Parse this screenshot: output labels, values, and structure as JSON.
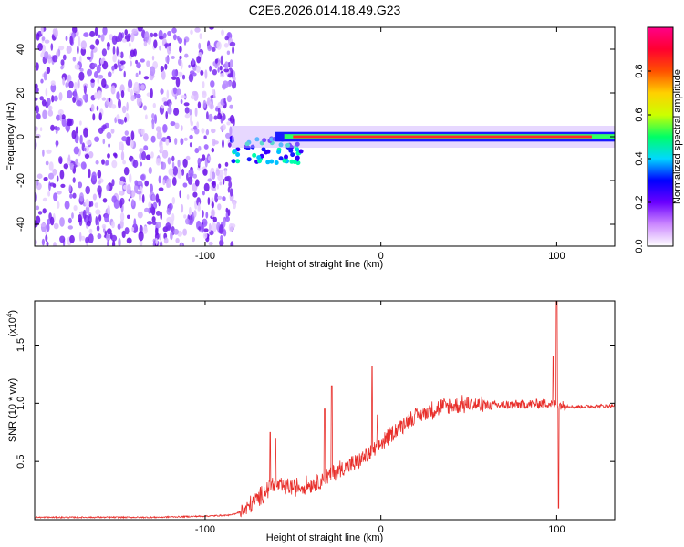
{
  "title": "C2E6.2026.014.18.49.G23",
  "chart_data": [
    {
      "type": "heatmap",
      "name": "spectrogram",
      "xlabel": "Height of straight line (km)",
      "ylabel": "Frequency (Hz)",
      "xlim": [
        -197,
        133
      ],
      "ylim": [
        -50,
        50
      ],
      "xticks": [
        -100,
        0,
        100
      ],
      "yticks": [
        -40,
        -20,
        0,
        20,
        40
      ],
      "ridge_frequency_hz": 0,
      "noise_region_x": [
        -197,
        -83
      ],
      "colorbar": {
        "label": "Normalized spectral amplitude",
        "range": [
          0,
          1
        ],
        "ticks": [
          "0.0",
          "0.2",
          "0.4",
          "0.6",
          "0.8"
        ],
        "tick_values": [
          0,
          0.2,
          0.4,
          0.6,
          0.8
        ],
        "colors": [
          "#ffffff",
          "#cc88ff",
          "#6a00ff",
          "#0000ff",
          "#00d8ff",
          "#00ff66",
          "#ccff00",
          "#ffd000",
          "#ff5000",
          "#ff0030",
          "#ff0088"
        ]
      }
    },
    {
      "type": "line",
      "name": "snr",
      "xlabel": "Height of straight line (km)",
      "ylabel": "SNR (10 * v/v)",
      "yscale_label": "(x10",
      "yscale_exp": "4",
      "yscale_close": ")",
      "xlim": [
        -197,
        133
      ],
      "ylim": [
        0,
        1.88
      ],
      "xticks": [
        -100,
        0,
        100
      ],
      "yticks": [
        "0.5",
        "1.0",
        "1.5"
      ],
      "ytick_values": [
        0.5,
        1.0,
        1.5
      ],
      "color": "#e8302c",
      "knots": [
        [
          -197,
          0.02
        ],
        [
          -130,
          0.02
        ],
        [
          -100,
          0.03
        ],
        [
          -85,
          0.04
        ],
        [
          -78,
          0.08
        ],
        [
          -70,
          0.18
        ],
        [
          -62,
          0.3
        ],
        [
          -55,
          0.28
        ],
        [
          -45,
          0.28
        ],
        [
          -35,
          0.33
        ],
        [
          -25,
          0.42
        ],
        [
          -15,
          0.48
        ],
        [
          -5,
          0.58
        ],
        [
          5,
          0.72
        ],
        [
          15,
          0.85
        ],
        [
          25,
          0.92
        ],
        [
          35,
          0.97
        ],
        [
          50,
          0.99
        ],
        [
          60,
          0.98
        ],
        [
          80,
          0.99
        ],
        [
          95,
          1.0
        ],
        [
          110,
          0.97
        ],
        [
          133,
          0.98
        ]
      ],
      "spikes": [
        [
          -63,
          0.75
        ],
        [
          -60,
          0.7
        ],
        [
          -32,
          0.95
        ],
        [
          -28,
          1.15
        ],
        [
          -5,
          1.32
        ],
        [
          -2,
          0.9
        ],
        [
          98,
          1.4
        ],
        [
          100,
          1.88
        ],
        [
          101,
          0.1
        ]
      ]
    }
  ]
}
